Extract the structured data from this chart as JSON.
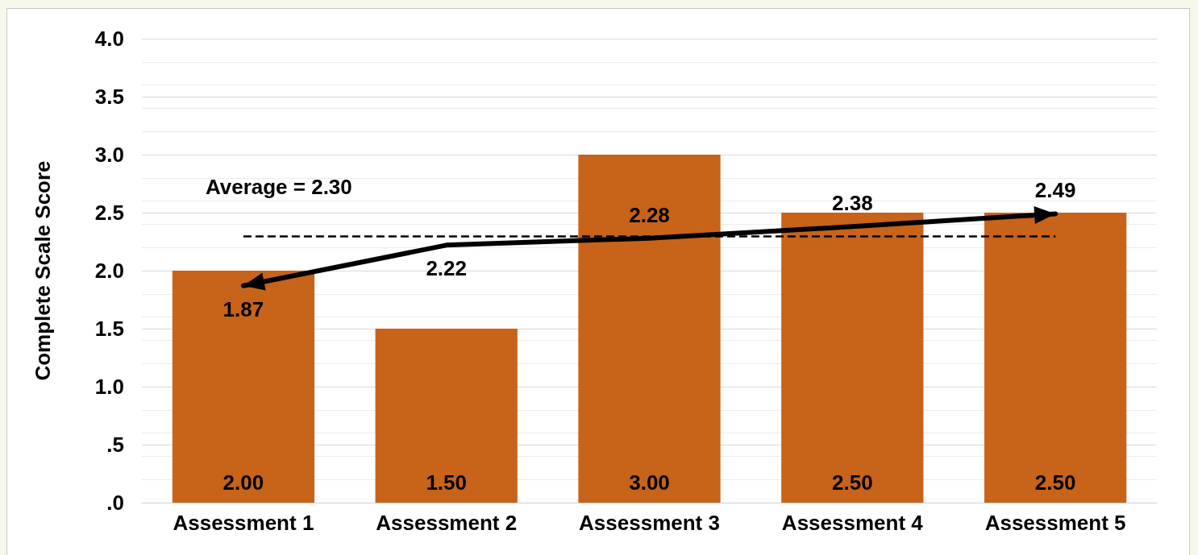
{
  "chart_data": {
    "type": "bar",
    "ylabel": "Complete Scale Score",
    "categories": [
      "Assessment 1",
      "Assessment 2",
      "Assessment 3",
      "Assessment 4",
      "Assessment 5"
    ],
    "series": [
      {
        "color": "#c8631a",
        "values": [
          2.0,
          1.5,
          3.0,
          2.5,
          2.5
        ],
        "value_labels": [
          "2.00",
          "1.50",
          "3.00",
          "2.50",
          "2.50"
        ]
      },
      {
        "type": "line",
        "color": "#000000",
        "values": [
          1.87,
          2.22,
          2.28,
          2.38,
          2.49
        ],
        "value_labels": [
          "1.87",
          "2.22",
          "2.28",
          "2.38",
          "2.49"
        ],
        "marker": "none",
        "line_style": "solid"
      }
    ],
    "ylim": [
      0,
      4
    ],
    "yticks": [
      {
        "value": 0,
        "label": ".0"
      },
      {
        "value": 0.5,
        "label": ".5"
      },
      {
        "value": 1,
        "label": "1.0"
      },
      {
        "value": 1.5,
        "label": "1.5"
      },
      {
        "value": 2,
        "label": "2.0"
      },
      {
        "value": 2.5,
        "label": "2.5"
      },
      {
        "value": 3,
        "label": "3.0"
      },
      {
        "value": 3.5,
        "label": "3.5"
      },
      {
        "value": 4,
        "label": "4.0"
      }
    ],
    "ref_lines": [
      {
        "axis": "y",
        "value": 2.3,
        "label": "Average = 2.30",
        "color": "#000000",
        "line_style": "dashed"
      }
    ],
    "grid": "y"
  }
}
